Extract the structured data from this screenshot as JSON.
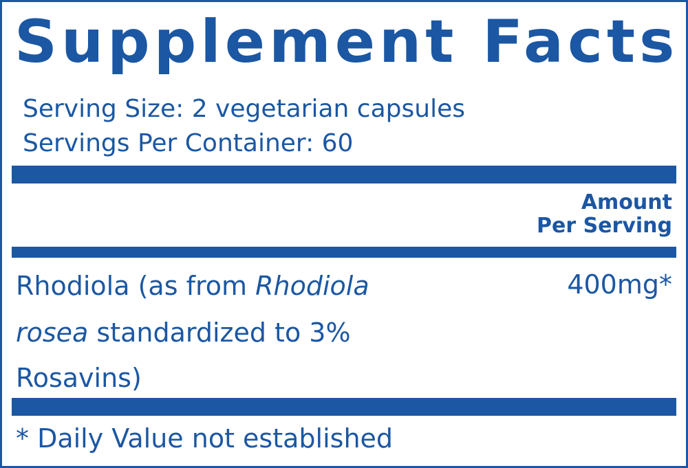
{
  "header": {
    "title": "Supplement Facts",
    "serving_size": "Serving Size: 2 vegetarian capsules",
    "servings_per_container": "Servings Per Container: 60"
  },
  "table": {
    "column_header": [
      "Amount",
      "Per Serving"
    ],
    "rows": [
      {
        "ingredient": [
          [
            {
              "text": "Rhodiola (as from ",
              "style": "normal"
            },
            {
              "text": "Rhodiola",
              "style": "italic"
            }
          ],
          [
            {
              "text": "rosea",
              "style": "italic"
            },
            {
              "text": " standardized to 3%",
              "style": "normal"
            }
          ],
          [
            {
              "text": "Rosavins)",
              "style": "normal"
            }
          ]
        ],
        "amount": "400mg*"
      }
    ]
  },
  "footnote": "* Daily Value not established"
}
